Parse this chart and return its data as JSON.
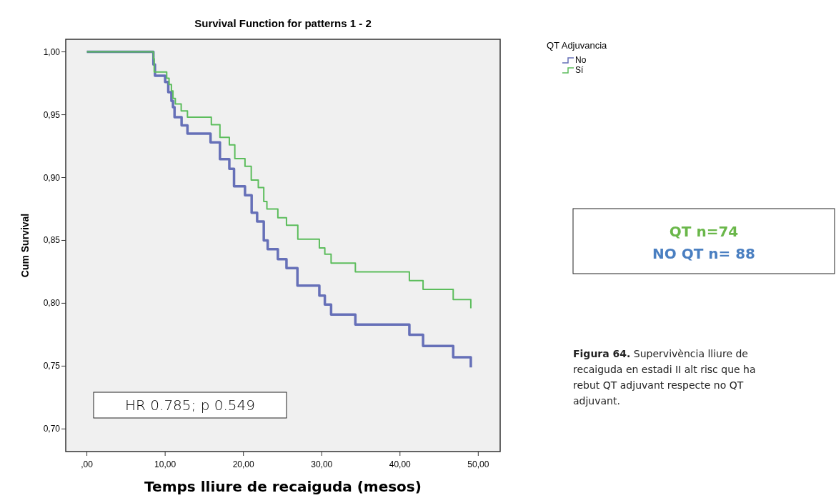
{
  "chart_data": {
    "type": "step",
    "title": "Survival Function for patterns 1 - 2",
    "xlabel": "Temps lliure de recaiguda (mesos)",
    "ylabel": "Cum Survival",
    "legend_title": "QT Adjuvancia",
    "legend": "top right",
    "grid": false,
    "xlim": [
      -2.7,
      52.8
    ],
    "ylim": [
      0.682,
      1.01
    ],
    "xticks": [
      {
        "value": 0,
        "label": ",00"
      },
      {
        "value": 10,
        "label": "10,00"
      },
      {
        "value": 20,
        "label": "20,00"
      },
      {
        "value": 30,
        "label": "30,00"
      },
      {
        "value": 40,
        "label": "40,00"
      },
      {
        "value": 50,
        "label": "50,00"
      }
    ],
    "yticks": [
      {
        "value": 0.7,
        "label": "0,70"
      },
      {
        "value": 0.75,
        "label": "0,75"
      },
      {
        "value": 0.8,
        "label": "0,80"
      },
      {
        "value": 0.85,
        "label": "0,85"
      },
      {
        "value": 0.9,
        "label": "0,90"
      },
      {
        "value": 0.95,
        "label": "0,95"
      },
      {
        "value": 1,
        "label": "1,00"
      }
    ],
    "series": [
      {
        "name": "No",
        "color": "#6670b8",
        "x": [
          0,
          8.5,
          8.7,
          10.0,
          10.4,
          10.8,
          11.0,
          11.2,
          12.1,
          12.85,
          15.8,
          17.0,
          18.2,
          18.8,
          20.2,
          21.05,
          21.75,
          22.6,
          23.1,
          24.4,
          25.5,
          26.9,
          29.7,
          30.4,
          31.2,
          34.3,
          41.2,
          42.95,
          46.8,
          49.05,
          49.05
        ],
        "values": [
          1,
          0.99,
          0.981,
          0.976,
          0.968,
          0.961,
          0.956,
          0.948,
          0.9415,
          0.935,
          0.928,
          0.9146,
          0.907,
          0.893,
          0.886,
          0.872,
          0.865,
          0.85,
          0.843,
          0.835,
          0.828,
          0.814,
          0.806,
          0.799,
          0.791,
          0.783,
          0.775,
          0.766,
          0.757,
          0.757,
          0.749
        ]
      },
      {
        "name": "Sí",
        "color": "#5cbd5c",
        "x": [
          0,
          8.5,
          8.6,
          10.2,
          10.5,
          10.8,
          11.0,
          11.3,
          12.05,
          12.85,
          15.9,
          17.0,
          18.2,
          18.9,
          20.2,
          21.0,
          21.9,
          22.6,
          23.0,
          24.4,
          25.5,
          26.95,
          29.7,
          30.4,
          31.2,
          34.3,
          41.2,
          42.95,
          46.8,
          49.05,
          49.05
        ],
        "values": [
          1,
          0.9945,
          0.984,
          0.979,
          0.974,
          0.969,
          0.963,
          0.9585,
          0.953,
          0.948,
          0.942,
          0.932,
          0.926,
          0.915,
          0.909,
          0.898,
          0.892,
          0.881,
          0.875,
          0.868,
          0.862,
          0.851,
          0.844,
          0.839,
          0.832,
          0.825,
          0.818,
          0.811,
          0.803,
          0.803,
          0.796
        ]
      }
    ],
    "annotations": [
      "HR 0.785; p 0.549",
      "QT n=74",
      "NO QT n= 88",
      "Figura 64. Supervivència lliure de recaiguda en estadi II alt risc que ha rebut QT adjuvant respecte no QT adjuvant."
    ]
  }
}
